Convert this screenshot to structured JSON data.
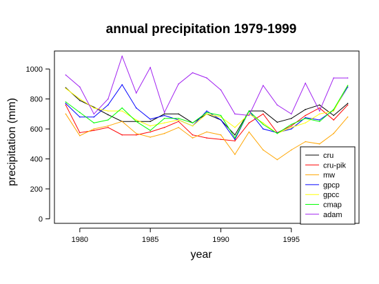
{
  "chart_data": {
    "type": "line",
    "title": "annual precipitation 1979-1999",
    "xlabel": "year",
    "ylabel": "precipitation (mm)",
    "xlim": [
      1978.2,
      1999.8
    ],
    "ylim": [
      -30,
      1120
    ],
    "x_ticks": [
      1980,
      1985,
      1990,
      1995
    ],
    "y_ticks": [
      0,
      200,
      400,
      600,
      800,
      1000
    ],
    "x": [
      1979,
      1980,
      1981,
      1982,
      1983,
      1984,
      1985,
      1986,
      1987,
      1988,
      1989,
      1990,
      1991,
      1992,
      1993,
      1994,
      1995,
      1996,
      1997,
      1998,
      1999
    ],
    "legend_position": "bottom-right",
    "grid": false,
    "series": [
      {
        "name": "cru",
        "color": "#000000",
        "values": [
          875,
          790,
          745,
          695,
          650,
          650,
          650,
          700,
          700,
          640,
          700,
          660,
          560,
          720,
          720,
          645,
          670,
          730,
          760,
          690,
          770
        ]
      },
      {
        "name": "cru-pik",
        "color": "#ff0000",
        "values": [
          760,
          575,
          590,
          610,
          560,
          560,
          580,
          610,
          650,
          560,
          540,
          530,
          520,
          640,
          700,
          575,
          620,
          690,
          740,
          660,
          760
        ]
      },
      {
        "name": "mw",
        "color": "#ffa500",
        "values": [
          700,
          555,
          600,
          620,
          650,
          570,
          545,
          570,
          610,
          540,
          580,
          560,
          430,
          580,
          460,
          395,
          460,
          515,
          500,
          570,
          680
        ]
      },
      {
        "name": "gpcp",
        "color": "#0000ff",
        "values": [
          770,
          680,
          680,
          760,
          895,
          740,
          665,
          690,
          660,
          620,
          720,
          660,
          530,
          720,
          600,
          575,
          600,
          675,
          660,
          725,
          880
        ]
      },
      {
        "name": "gpcc",
        "color": "#ffff00",
        "values": [
          870,
          800,
          740,
          720,
          720,
          660,
          620,
          640,
          660,
          620,
          700,
          680,
          610,
          700,
          640,
          570,
          610,
          640,
          700,
          720,
          890
        ]
      },
      {
        "name": "cmap",
        "color": "#00ff00",
        "values": [
          780,
          710,
          640,
          660,
          740,
          650,
          590,
          670,
          670,
          640,
          710,
          690,
          540,
          720,
          630,
          570,
          630,
          670,
          650,
          730,
          890
        ]
      },
      {
        "name": "adam",
        "color": "#a020f0",
        "values": [
          960,
          880,
          700,
          800,
          1085,
          840,
          1010,
          710,
          900,
          975,
          940,
          860,
          700,
          690,
          890,
          760,
          700,
          905,
          720,
          940,
          940
        ]
      }
    ]
  }
}
